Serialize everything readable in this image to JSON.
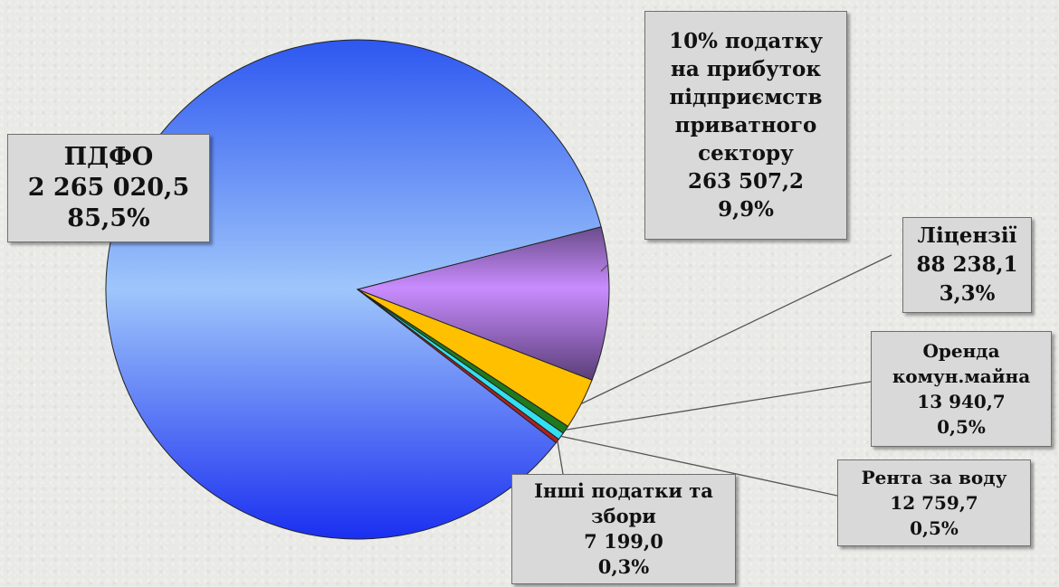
{
  "chart_data": {
    "type": "pie",
    "slices": [
      {
        "name": "ПДФО",
        "value_text": "2 265 020,5",
        "percent_text": "85,5%",
        "value": 2265020.5,
        "percent": 85.5,
        "color": "#5b86f2"
      },
      {
        "name": "10% податку на прибуток підприємств приватного сектору",
        "name_lines": [
          "10% податку",
          "на прибуток",
          "підприємств",
          "приватного",
          "сектору"
        ],
        "value_text": "263 507,2",
        "percent_text": "9,9%",
        "value": 263507.2,
        "percent": 9.9,
        "color": "#c080f4"
      },
      {
        "name": "Ліцензії",
        "value_text": "88 238,1",
        "percent_text": "3,3%",
        "value": 88238.1,
        "percent": 3.3,
        "color": "#ffc000"
      },
      {
        "name": "Оренда комун.майна",
        "name_lines": [
          "Оренда",
          "комун.майна"
        ],
        "value_text": "13 940,7",
        "percent_text": "0,5%",
        "value": 13940.7,
        "percent": 0.5,
        "color": "#1f7a1f"
      },
      {
        "name": "Рента за воду",
        "value_text": "12 759,7",
        "percent_text": "0,5%",
        "value": 12759.7,
        "percent": 0.5,
        "color": "#33e0f0"
      },
      {
        "name": "Інші податки та збори",
        "name_lines": [
          "Інші податки та",
          "збори"
        ],
        "value_text": "7 199,0",
        "percent_text": "0,3%",
        "value": 7199.0,
        "percent": 0.3,
        "color": "#b02020"
      }
    ]
  }
}
